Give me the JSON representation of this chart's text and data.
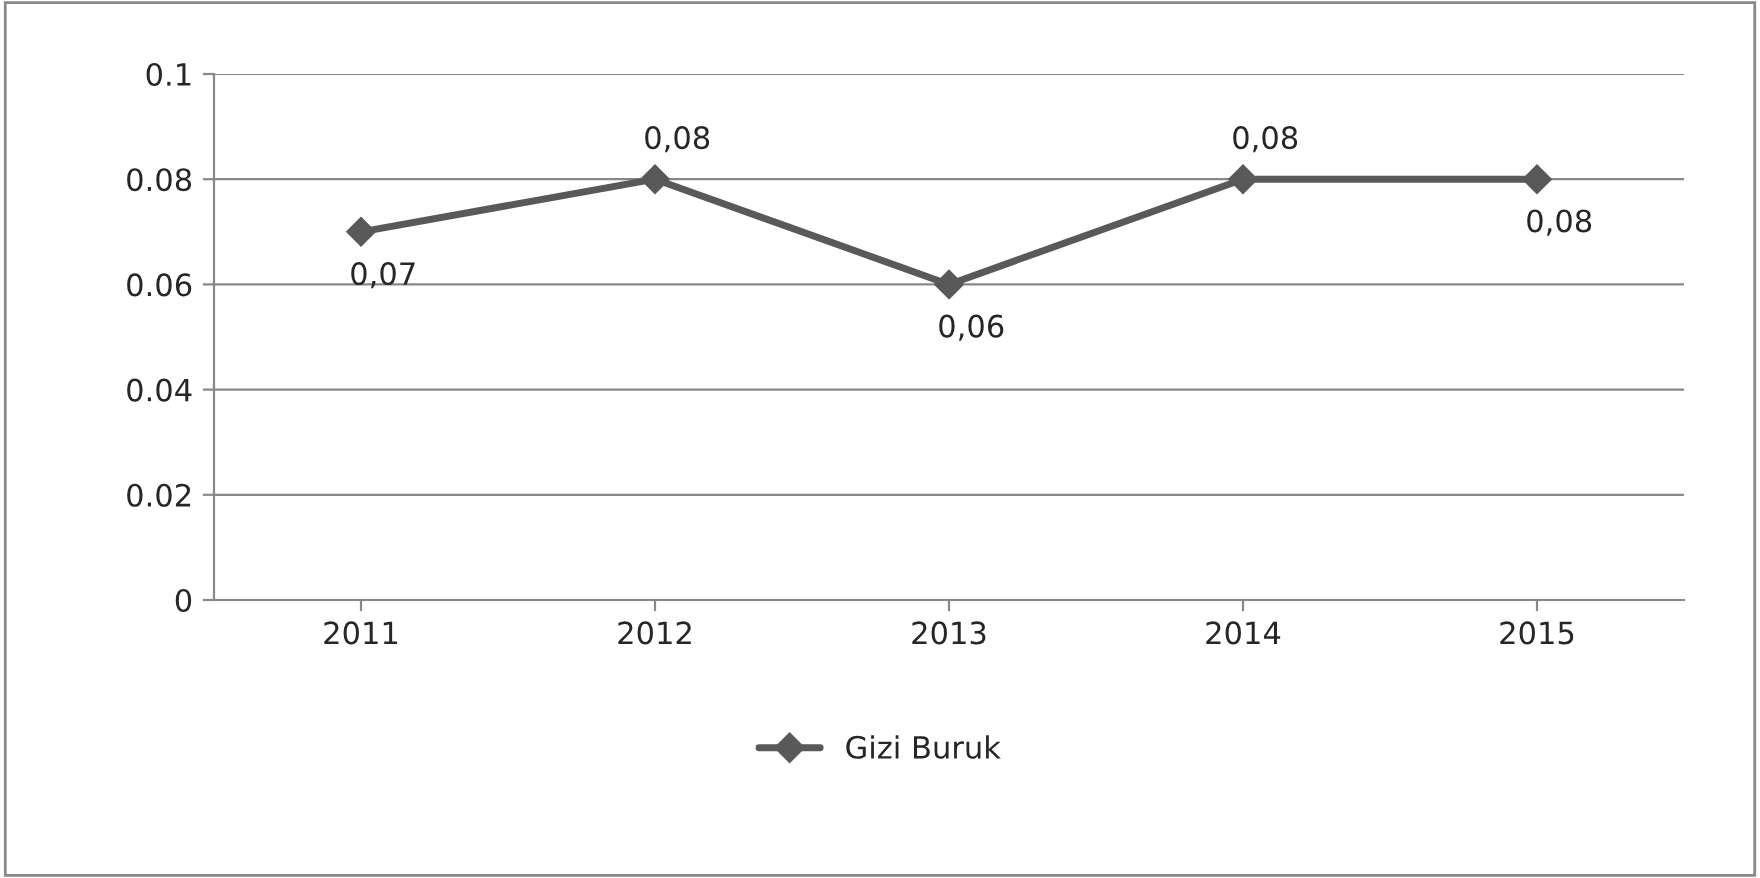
{
  "chart_data": {
    "type": "line",
    "categories": [
      "2011",
      "2012",
      "2013",
      "2014",
      "2015"
    ],
    "series": [
      {
        "name": "Gizi Buruk",
        "color": "#595959",
        "values": [
          0.07,
          0.08,
          0.06,
          0.08,
          0.08
        ],
        "value_labels": [
          "0,07",
          "0,08",
          "0,06",
          "0,08",
          "0,08"
        ]
      }
    ],
    "ylim": [
      0,
      0.1
    ],
    "yticks": [
      0,
      0.02,
      0.04,
      0.06,
      0.08,
      0.1
    ],
    "grid": "y",
    "legend": "bottom",
    "marker": "diamond",
    "line_style": "solid"
  }
}
